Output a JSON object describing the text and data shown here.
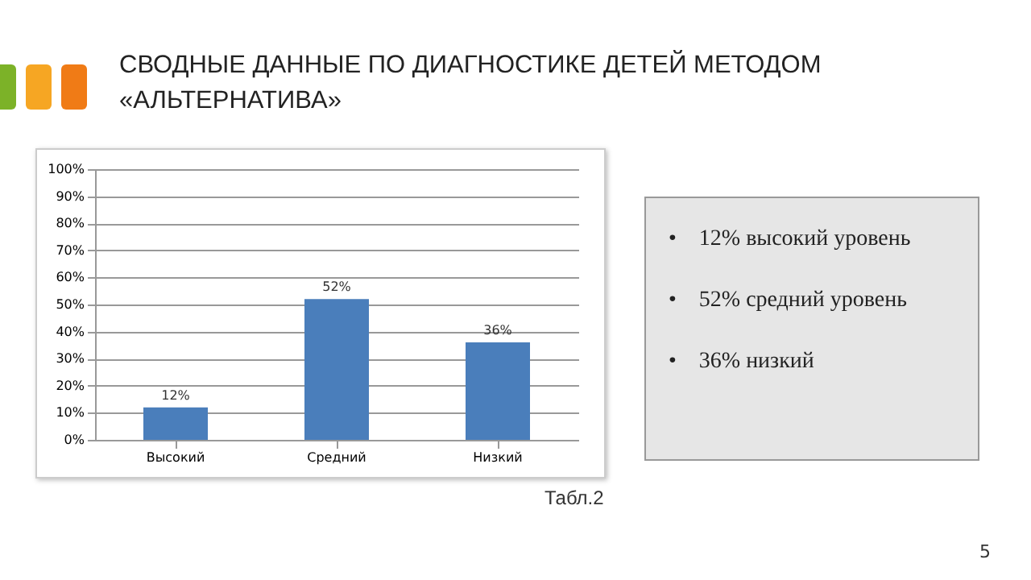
{
  "chart_data": {
    "type": "bar",
    "title": "СВОДНЫЕ ДАННЫЕ ПО ДИАГНОСТИКЕ ДЕТЕЙ МЕТОДОМ «АЛЬТЕРНАТИВА»",
    "categories": [
      "Высокий",
      "Средний",
      "Низкий"
    ],
    "values": [
      12,
      52,
      36
    ],
    "value_labels": [
      "12%",
      "52%",
      "36%"
    ],
    "color": "#4a7ebb",
    "ylim": [
      0,
      100
    ],
    "yticks": [
      {
        "value": 0,
        "label": "0%"
      },
      {
        "value": 10,
        "label": "10%"
      },
      {
        "value": 20,
        "label": "20%"
      },
      {
        "value": 30,
        "label": "30%"
      },
      {
        "value": 40,
        "label": "40%"
      },
      {
        "value": 50,
        "label": "50%"
      },
      {
        "value": 60,
        "label": "60%"
      },
      {
        "value": 70,
        "label": "70%"
      },
      {
        "value": 80,
        "label": "80%"
      },
      {
        "value": 90,
        "label": "90%"
      },
      {
        "value": 100,
        "label": "100%"
      }
    ],
    "grid": "y",
    "annotations": [
      "•    12% высокий уровень",
      "•    52% средний уровень",
      "•    36% низкий",
      "Табл.2",
      "5"
    ]
  }
}
